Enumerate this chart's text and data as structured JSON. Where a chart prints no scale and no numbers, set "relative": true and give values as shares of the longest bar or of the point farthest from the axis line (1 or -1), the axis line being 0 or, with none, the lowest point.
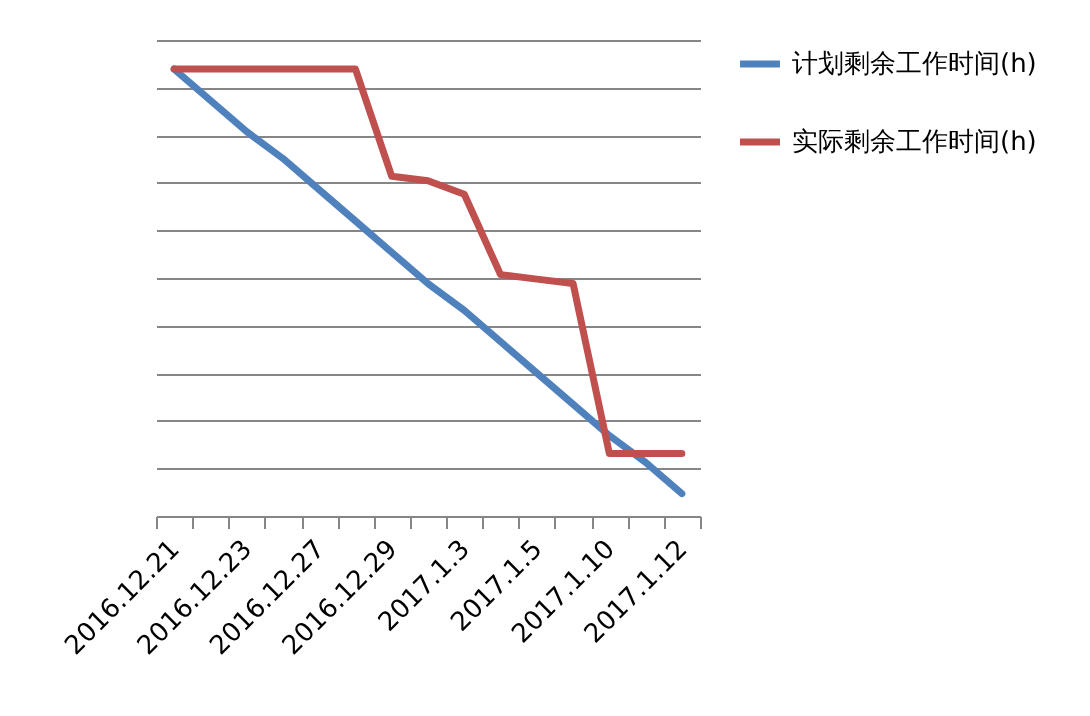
{
  "chart_data": {
    "type": "line",
    "relative": true,
    "grid": "y",
    "legend": "right",
    "marker": "none",
    "categories": [
      "2016.12.21",
      null,
      "2016.12.23",
      null,
      "2016.12.27",
      null,
      "2016.12.29",
      null,
      "2017.1.3",
      null,
      "2017.1.5",
      null,
      "2017.1.10",
      null,
      "2017.1.12"
    ],
    "series": [
      {
        "name": "计划剩余工作时间(h)",
        "color": "#4f81bd",
        "values": [
          1,
          0.93,
          0.86,
          0.8,
          0.73,
          0.66,
          0.59,
          0.52,
          0.46,
          0.39,
          0.32,
          0.25,
          0.18,
          0.12,
          0.05
        ]
      },
      {
        "name": "实际剩余工作时间(h)",
        "color": "#c0504d",
        "values": [
          1,
          1,
          1,
          1,
          1,
          1,
          0.76,
          0.75,
          0.72,
          0.54,
          0.53,
          0.52,
          0.14,
          0.14,
          0.14
        ]
      }
    ]
  }
}
